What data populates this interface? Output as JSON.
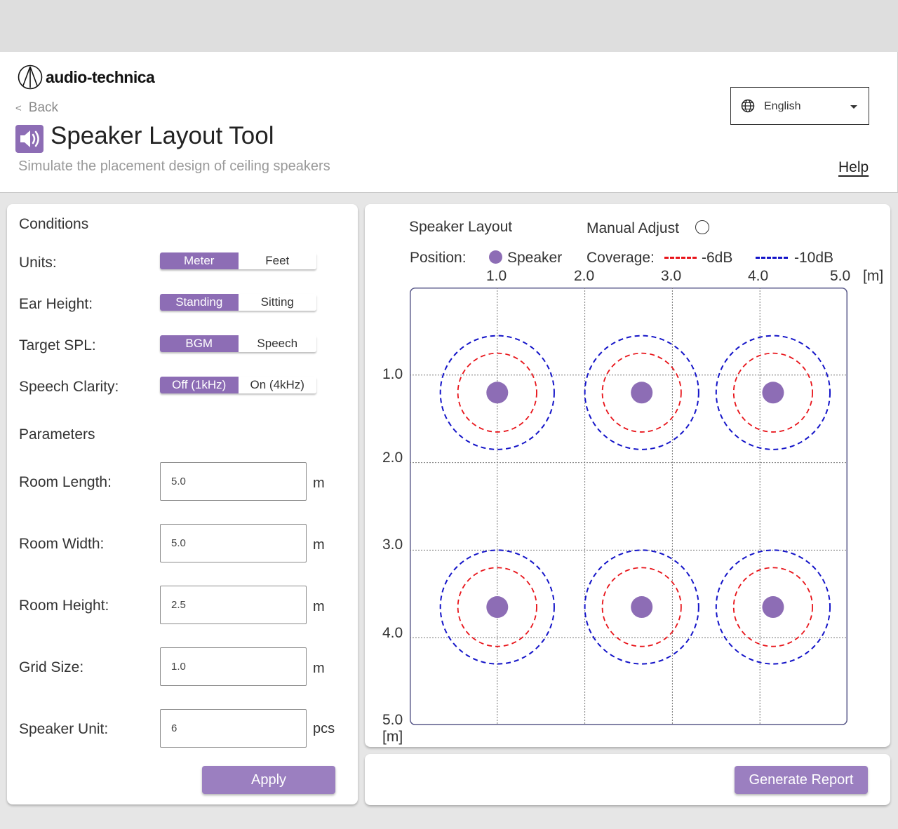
{
  "header": {
    "logo_text": "audio-technica",
    "back_label": "Back",
    "title": "Speaker Layout Tool",
    "subtitle": "Simulate the placement design of ceiling speakers",
    "language": "English",
    "help_label": "Help"
  },
  "conditions": {
    "title": "Conditions",
    "units": {
      "label": "Units:",
      "options": [
        "Meter",
        "Feet"
      ],
      "selected": "Meter"
    },
    "ear_height": {
      "label": "Ear Height:",
      "options": [
        "Standing",
        "Sitting"
      ],
      "selected": "Standing"
    },
    "target_spl": {
      "label": "Target SPL:",
      "options": [
        "BGM",
        "Speech"
      ],
      "selected": "BGM"
    },
    "speech_clarity": {
      "label": "Speech Clarity:",
      "options": [
        "Off (1kHz)",
        "On (4kHz)"
      ],
      "selected": "Off (1kHz)"
    }
  },
  "parameters": {
    "title": "Parameters",
    "room_length": {
      "label": "Room Length:",
      "value": "5.0",
      "unit": "m"
    },
    "room_width": {
      "label": "Room Width:",
      "value": "5.0",
      "unit": "m"
    },
    "room_height": {
      "label": "Room Height:",
      "value": "2.5",
      "unit": "m"
    },
    "grid_size": {
      "label": "Grid Size:",
      "value": "1.0",
      "unit": "m"
    },
    "speaker_unit": {
      "label": "Speaker Unit:",
      "value": "6",
      "unit": "pcs"
    },
    "apply_label": "Apply"
  },
  "layout": {
    "title": "Speaker Layout",
    "manual_adjust_label": "Manual Adjust",
    "manual_adjust_checked": false,
    "position_label": "Position:",
    "speaker_label": "Speaker",
    "coverage_label": "Coverage:",
    "minus6_label": "-6dB",
    "minus10_label": "-10dB",
    "x_ticks": [
      "1.0",
      "2.0",
      "3.0",
      "4.0",
      "5.0"
    ],
    "y_ticks": [
      "1.0",
      "2.0",
      "3.0",
      "4.0",
      "5.0"
    ],
    "x_unit": "[m]",
    "y_unit": "[m]",
    "room": {
      "length": 5.0,
      "width": 5.0
    },
    "speakers": [
      {
        "x": 1.0,
        "y": 1.2
      },
      {
        "x": 2.65,
        "y": 1.2
      },
      {
        "x": 4.15,
        "y": 1.2
      },
      {
        "x": 1.0,
        "y": 3.65
      },
      {
        "x": 2.65,
        "y": 3.65
      },
      {
        "x": 4.15,
        "y": 3.65
      }
    ],
    "coverage_radius_6db": 0.45,
    "coverage_radius_10db": 0.65,
    "colors": {
      "speaker": "#8d6db5",
      "minus6": "#e8141a",
      "minus10": "#1414c8",
      "accent": "#8d6db5"
    }
  },
  "footer": {
    "report_label": "Generate Report"
  }
}
